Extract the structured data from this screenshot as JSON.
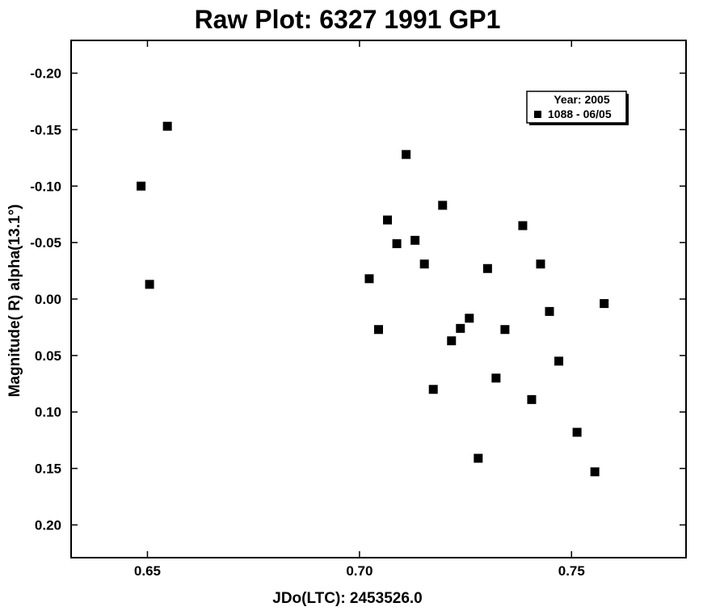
{
  "chart_data": {
    "type": "scatter",
    "title": "Raw Plot: 6327 1991 GP1",
    "xlabel": "JDo(LTC): 2453526.0",
    "ylabel": "Magnitude( R) alpha(13.1°)",
    "xlim": [
      0.632,
      0.777
    ],
    "ylim": [
      0.229,
      -0.229
    ],
    "y_inverted": true,
    "x_ticks": [
      0.65,
      0.7,
      0.75
    ],
    "x_tick_labels": [
      "0.65",
      "0.70",
      "0.75"
    ],
    "y_ticks": [
      -0.2,
      -0.15,
      -0.1,
      -0.05,
      0.0,
      0.05,
      0.1,
      0.15,
      0.2
    ],
    "y_tick_labels": [
      "-0.20",
      "-0.15",
      "-0.10",
      "-0.05",
      "0.00",
      "0.05",
      "0.10",
      "0.15",
      "0.20"
    ],
    "grid": false,
    "legend": {
      "placement": "top-right",
      "title": "Year: 2005",
      "entries": [
        "1088 - 06/05"
      ]
    },
    "series": [
      {
        "name": "1088 - 06/05",
        "marker": "square",
        "color": "#000000",
        "points": [
          {
            "x": 0.6485,
            "y": -0.1
          },
          {
            "x": 0.6505,
            "y": -0.013
          },
          {
            "x": 0.6547,
            "y": -0.153
          },
          {
            "x": 0.7023,
            "y": -0.018
          },
          {
            "x": 0.7045,
            "y": 0.027
          },
          {
            "x": 0.7066,
            "y": -0.07
          },
          {
            "x": 0.7088,
            "y": -0.049
          },
          {
            "x": 0.711,
            "y": -0.128
          },
          {
            "x": 0.7131,
            "y": -0.052
          },
          {
            "x": 0.7153,
            "y": -0.031
          },
          {
            "x": 0.7174,
            "y": 0.08
          },
          {
            "x": 0.7196,
            "y": -0.083
          },
          {
            "x": 0.7217,
            "y": 0.037
          },
          {
            "x": 0.7238,
            "y": 0.026
          },
          {
            "x": 0.7259,
            "y": 0.017
          },
          {
            "x": 0.728,
            "y": 0.141
          },
          {
            "x": 0.7302,
            "y": -0.027
          },
          {
            "x": 0.7322,
            "y": 0.07
          },
          {
            "x": 0.7343,
            "y": 0.027
          },
          {
            "x": 0.7385,
            "y": -0.065
          },
          {
            "x": 0.7406,
            "y": 0.089
          },
          {
            "x": 0.7427,
            "y": -0.031
          },
          {
            "x": 0.7448,
            "y": 0.011
          },
          {
            "x": 0.747,
            "y": 0.055
          },
          {
            "x": 0.7513,
            "y": 0.118
          },
          {
            "x": 0.7555,
            "y": 0.153
          },
          {
            "x": 0.7577,
            "y": 0.004
          }
        ]
      }
    ]
  }
}
